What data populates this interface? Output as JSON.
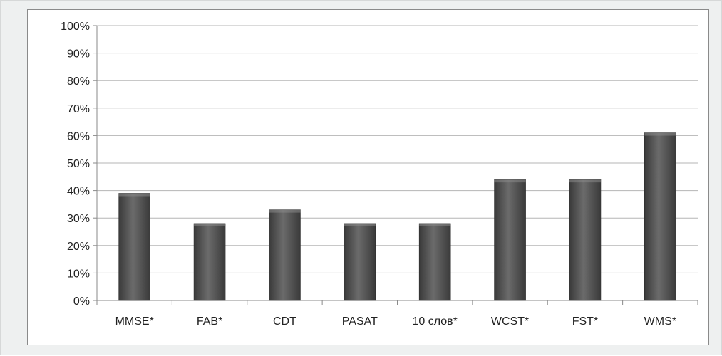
{
  "chart_data": {
    "type": "bar",
    "title": "",
    "xlabel": "",
    "ylabel": "",
    "categories": [
      "MMSE*",
      "FAB*",
      "CDT",
      "PASAT",
      "10 слов*",
      "WCST*",
      "FST*",
      "WMS*"
    ],
    "values": [
      0.39,
      0.28,
      0.33,
      0.28,
      0.28,
      0.44,
      0.44,
      0.61
    ],
    "ylim": [
      0,
      1
    ],
    "yticks": [
      0,
      0.1,
      0.2,
      0.3,
      0.4,
      0.5,
      0.6,
      0.7,
      0.8,
      0.9,
      1.0
    ],
    "ytick_labels": [
      "0%",
      "10%",
      "20%",
      "30%",
      "40%",
      "50%",
      "60%",
      "70%",
      "80%",
      "90%",
      "100%"
    ],
    "grid": true,
    "legend": "none",
    "colors": {
      "bar_dark": "#3a3a3a",
      "bar_light": "#6b6b6b",
      "gridline": "#b5b5b5",
      "axis": "#8a8a8a"
    }
  }
}
